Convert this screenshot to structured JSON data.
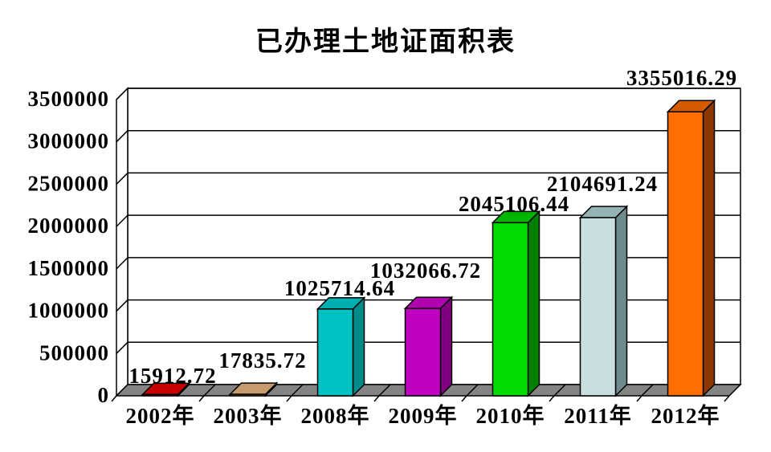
{
  "title": "已办理土地证面积表",
  "chart_data": {
    "type": "bar",
    "style": "3d",
    "title": "已办理土地证面积表",
    "xlabel": "",
    "ylabel": "",
    "categories": [
      "2002年",
      "2003年",
      "2008年",
      "2009年",
      "2010年",
      "2011年",
      "2012年"
    ],
    "values": [
      15912.72,
      17835.72,
      1025714.64,
      1032066.72,
      2045106.44,
      2104691.24,
      3355016.29
    ],
    "data_labels": [
      "15912.72",
      "17835.72",
      "1025714.64",
      "1032066.72",
      "2045106.44",
      "2104691.24",
      "3355016.29"
    ],
    "y_ticks": [
      "0",
      "500000",
      "1000000",
      "1500000",
      "2000000",
      "2500000",
      "3000000",
      "3500000"
    ],
    "ylim": [
      0,
      3500000
    ],
    "grid": true,
    "legend_position": "none",
    "wall_color": "#ffffff",
    "floor_color": "#848484",
    "outline_color": "#000000",
    "bar_colors": [
      {
        "front": "#c00000",
        "top": "#c80000",
        "side": "#800000"
      },
      {
        "front": "#a67848",
        "top": "#c69c6e",
        "side": "#8f6b42"
      },
      {
        "front": "#00c2c2",
        "top": "#00b0b0",
        "side": "#008b8b"
      },
      {
        "front": "#c000c0",
        "top": "#b000b0",
        "side": "#800080"
      },
      {
        "front": "#00dc00",
        "top": "#00b400",
        "side": "#008000"
      },
      {
        "front": "#c9dedf",
        "top": "#95b2b4",
        "side": "#6e8a8c"
      },
      {
        "front": "#ff6e00",
        "top": "#d45a00",
        "side": "#8b3800"
      }
    ]
  }
}
